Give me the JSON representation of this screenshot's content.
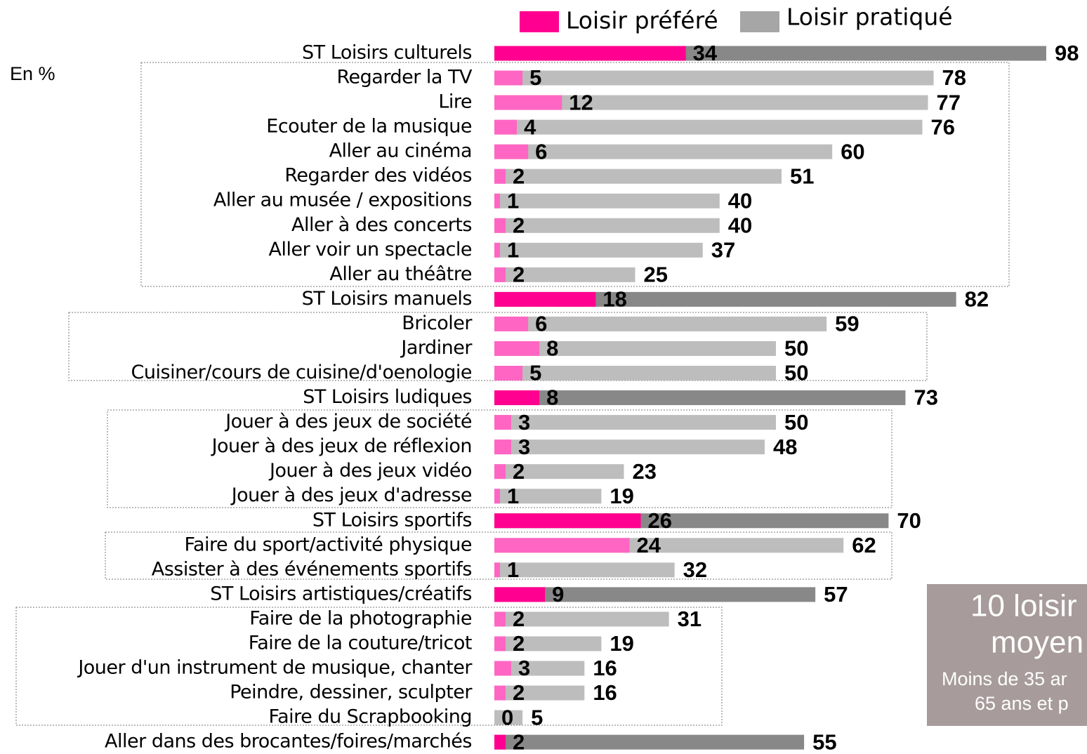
{
  "chart_data": {
    "type": "overlap-bar",
    "unit_note": "En %",
    "categories": [
      "ST Loisirs culturels",
      "Regarder la TV",
      "Lire",
      "Ecouter de la musique",
      "Aller au cinéma",
      "Regarder des vidéos",
      "Aller au musée / expositions",
      "Aller à des concerts",
      "Aller voir un spectacle",
      "Aller au théâtre",
      "ST Loisirs manuels",
      "Bricoler",
      "Jardiner",
      "Cuisiner/cours de cuisine/d'oenologie",
      "ST Loisirs ludiques",
      "Jouer à des jeux de société",
      "Jouer à des jeux de réflexion",
      "Jouer à des jeux vidéo",
      "Jouer à des jeux d'adresse",
      "ST Loisirs sportifs",
      "Faire du sport/activité physique",
      "Assister à des événements sportifs",
      "ST Loisirs artistiques/créatifs",
      "Faire de la photographie",
      "Faire de la couture/tricot",
      "Jouer d'un instrument de musique, chanter",
      "Peindre, dessiner, sculpter",
      "Faire du Scrapbooking",
      "Aller dans des brocantes/foires/marchés"
    ],
    "series": [
      {
        "name": "Loisir préféré",
        "color": "#ff0090",
        "colors": [
          "#ff0090",
          "#ff66c4",
          "#ff66c4",
          "#ff66c4",
          "#ff66c4",
          "#ff66c4",
          "#ff66c4",
          "#ff66c4",
          "#ff66c4",
          "#ff66c4",
          "#ff0090",
          "#ff66c4",
          "#ff66c4",
          "#ff66c4",
          "#ff0090",
          "#ff66c4",
          "#ff66c4",
          "#ff66c4",
          "#ff66c4",
          "#ff0090",
          "#ff66c4",
          "#ff66c4",
          "#ff0090",
          "#ff66c4",
          "#ff66c4",
          "#ff66c4",
          "#ff66c4",
          "#ff66c4",
          "#ff0090"
        ],
        "values": [
          34,
          5,
          12,
          4,
          6,
          2,
          1,
          2,
          1,
          2,
          18,
          6,
          8,
          5,
          8,
          3,
          3,
          2,
          1,
          26,
          24,
          1,
          9,
          2,
          2,
          3,
          2,
          0,
          2
        ]
      },
      {
        "name": "Loisir pratiqué",
        "color": "#a6a6a6",
        "colors": [
          "#888888",
          "#bdbdbd",
          "#bdbdbd",
          "#bdbdbd",
          "#bdbdbd",
          "#bdbdbd",
          "#bdbdbd",
          "#bdbdbd",
          "#bdbdbd",
          "#bdbdbd",
          "#888888",
          "#bdbdbd",
          "#bdbdbd",
          "#bdbdbd",
          "#888888",
          "#bdbdbd",
          "#bdbdbd",
          "#bdbdbd",
          "#bdbdbd",
          "#888888",
          "#bdbdbd",
          "#bdbdbd",
          "#888888",
          "#bdbdbd",
          "#bdbdbd",
          "#bdbdbd",
          "#bdbdbd",
          "#bdbdbd",
          "#888888"
        ],
        "values": [
          98,
          78,
          77,
          76,
          60,
          51,
          40,
          40,
          37,
          25,
          82,
          59,
          50,
          50,
          73,
          50,
          48,
          23,
          19,
          70,
          62,
          32,
          57,
          31,
          19,
          16,
          16,
          5,
          55
        ]
      }
    ],
    "annotations": [
      "10 loisir",
      "moyen",
      "Moins de 35 ar",
      "65 ans et p"
    ]
  }
}
